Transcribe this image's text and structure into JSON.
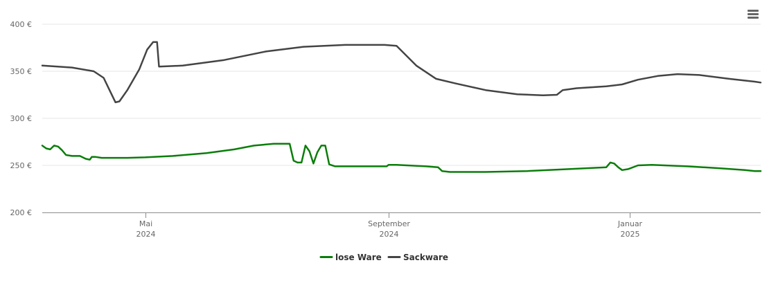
{
  "menu": {
    "icon": "hamburger-menu-icon"
  },
  "chart_data": {
    "type": "line",
    "title": "",
    "xlabel": "",
    "ylabel": "",
    "x_range": [
      "2024-03-10",
      "2025-03-08"
    ],
    "ylim": [
      200,
      400
    ],
    "y_ticks": [
      200,
      250,
      300,
      350,
      400
    ],
    "y_tick_labels": [
      "200 €",
      "250 €",
      "300 €",
      "350 €",
      "400 €"
    ],
    "x_ticks": [
      {
        "date": "2024-05-01",
        "label": "Mai",
        "year": "2024"
      },
      {
        "date": "2024-09-01",
        "label": "September",
        "year": "2024"
      },
      {
        "date": "2025-01-01",
        "label": "Januar",
        "year": "2025"
      }
    ],
    "grid": true,
    "legend": "bottom-center",
    "series": [
      {
        "name": "lose Ware",
        "color": "#0a7d0a",
        "points": [
          [
            "2024-03-10",
            271
          ],
          [
            "2024-03-12",
            268
          ],
          [
            "2024-03-14",
            267
          ],
          [
            "2024-03-16",
            271
          ],
          [
            "2024-03-18",
            270
          ],
          [
            "2024-03-20",
            266
          ],
          [
            "2024-03-22",
            261
          ],
          [
            "2024-03-25",
            260
          ],
          [
            "2024-03-29",
            260
          ],
          [
            "2024-04-01",
            257
          ],
          [
            "2024-04-03",
            256
          ],
          [
            "2024-04-04",
            259
          ],
          [
            "2024-04-06",
            259
          ],
          [
            "2024-04-09",
            258
          ],
          [
            "2024-04-22",
            258
          ],
          [
            "2024-05-01",
            258.5
          ],
          [
            "2024-05-15",
            260
          ],
          [
            "2024-06-01",
            263
          ],
          [
            "2024-06-15",
            267
          ],
          [
            "2024-06-25",
            271
          ],
          [
            "2024-07-05",
            273
          ],
          [
            "2024-07-13",
            273
          ],
          [
            "2024-07-15",
            255
          ],
          [
            "2024-07-17",
            253
          ],
          [
            "2024-07-19",
            253
          ],
          [
            "2024-07-21",
            271
          ],
          [
            "2024-07-23",
            265
          ],
          [
            "2024-07-25",
            252
          ],
          [
            "2024-07-27",
            264
          ],
          [
            "2024-07-29",
            271
          ],
          [
            "2024-07-31",
            271
          ],
          [
            "2024-08-02",
            251
          ],
          [
            "2024-08-05",
            249
          ],
          [
            "2024-08-31",
            249
          ],
          [
            "2024-09-01",
            250.5
          ],
          [
            "2024-09-05",
            250.5
          ],
          [
            "2024-09-20",
            249
          ],
          [
            "2024-09-26",
            248
          ],
          [
            "2024-09-28",
            244
          ],
          [
            "2024-10-02",
            243
          ],
          [
            "2024-10-20",
            243
          ],
          [
            "2024-11-10",
            244
          ],
          [
            "2024-12-01",
            246
          ],
          [
            "2024-12-10",
            247
          ],
          [
            "2024-12-20",
            248
          ],
          [
            "2024-12-22",
            253
          ],
          [
            "2024-12-24",
            252
          ],
          [
            "2024-12-26",
            248
          ],
          [
            "2024-12-28",
            245
          ],
          [
            "2024-12-31",
            246
          ],
          [
            "2025-01-05",
            250
          ],
          [
            "2025-01-12",
            250.5
          ],
          [
            "2025-01-30",
            249
          ],
          [
            "2025-02-15",
            247
          ],
          [
            "2025-02-28",
            245
          ],
          [
            "2025-03-05",
            244
          ],
          [
            "2025-03-08",
            244
          ]
        ]
      },
      {
        "name": "Sackware",
        "color": "#444444",
        "points": [
          [
            "2024-03-10",
            356
          ],
          [
            "2024-03-25",
            354
          ],
          [
            "2024-04-05",
            350
          ],
          [
            "2024-04-10",
            343
          ],
          [
            "2024-04-13",
            330
          ],
          [
            "2024-04-16",
            317
          ],
          [
            "2024-04-18",
            318
          ],
          [
            "2024-04-22",
            330
          ],
          [
            "2024-04-28",
            352
          ],
          [
            "2024-05-02",
            373
          ],
          [
            "2024-05-05",
            381
          ],
          [
            "2024-05-07",
            381
          ],
          [
            "2024-05-08",
            355
          ],
          [
            "2024-05-20",
            356
          ],
          [
            "2024-06-10",
            362
          ],
          [
            "2024-07-01",
            371
          ],
          [
            "2024-07-20",
            376
          ],
          [
            "2024-08-10",
            378
          ],
          [
            "2024-08-30",
            378
          ],
          [
            "2024-09-05",
            377
          ],
          [
            "2024-09-15",
            356
          ],
          [
            "2024-09-25",
            342
          ],
          [
            "2024-10-05",
            337
          ],
          [
            "2024-10-20",
            330
          ],
          [
            "2024-11-05",
            325.5
          ],
          [
            "2024-11-18",
            324.5
          ],
          [
            "2024-11-25",
            325
          ],
          [
            "2024-11-28",
            330
          ],
          [
            "2024-12-05",
            332
          ],
          [
            "2024-12-20",
            334
          ],
          [
            "2024-12-28",
            336
          ],
          [
            "2025-01-05",
            341
          ],
          [
            "2025-01-15",
            345
          ],
          [
            "2025-01-25",
            347
          ],
          [
            "2025-02-05",
            346
          ],
          [
            "2025-02-20",
            342
          ],
          [
            "2025-03-05",
            339
          ],
          [
            "2025-03-08",
            338
          ]
        ]
      }
    ]
  }
}
